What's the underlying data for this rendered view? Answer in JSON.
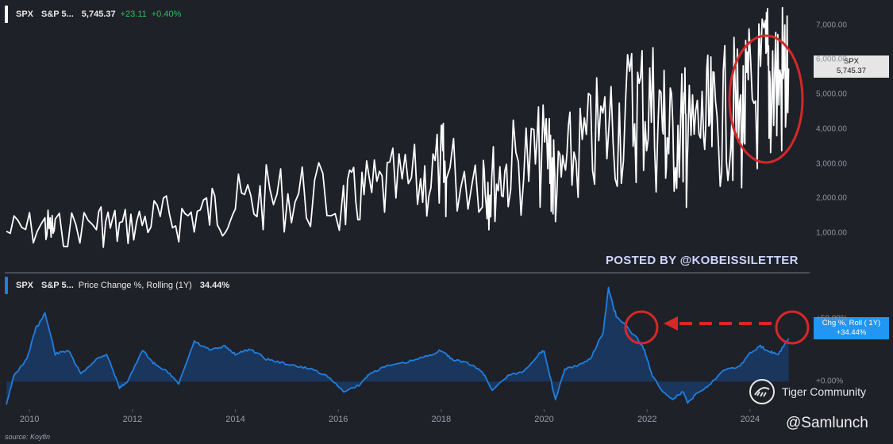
{
  "price_header": {
    "ticker": "SPX",
    "name": "S&P 5...",
    "last": "5,745.37",
    "change": "+23.11",
    "change_pct": "+0.40%"
  },
  "change_header": {
    "ticker": "SPX",
    "name": "S&P 5...",
    "metric": "Price Change %, Rolling (1Y)",
    "value": "34.44%"
  },
  "price_badge": {
    "line1": "SPX",
    "line2": "5,745.37"
  },
  "change_badge": {
    "line1": "Chg %, Roll ( 1Y)",
    "line2": "+34.44%"
  },
  "watermark": "POSTED BY @KOBEISSILETTER",
  "source": "source: Koyfin",
  "community": "Tiger Community",
  "handle": "@Samlunch",
  "colors": {
    "price_line": "#ffffff",
    "change_line": "#1f7fe0",
    "change_fill": "#1a3a66",
    "circle": "#d62828",
    "background": "#1f2129"
  },
  "chart_data": [
    {
      "type": "line",
      "series": [
        {
          "name": "SPX",
          "x": [
            2009.55,
            2010.3,
            2010.5,
            2011.3,
            2011.75,
            2012.3,
            2012.9,
            2013.5,
            2014.0,
            2014.6,
            2015.3,
            2016.1,
            2016.5,
            2017.0,
            2017.6,
            2018.0,
            2018.1,
            2018.8,
            2018.98,
            2019.3,
            2019.8,
            2020.1,
            2020.22,
            2020.5,
            2020.9,
            2021.3,
            2021.7,
            2021.99,
            2022.3,
            2022.45,
            2022.7,
            2022.79,
            2023.1,
            2023.3,
            2023.6,
            2023.82,
            2023.98,
            2024.3,
            2024.4,
            2024.6,
            2024.75
          ],
          "y": [
            1050,
            1180,
            1050,
            1340,
            1130,
            1400,
            1430,
            1650,
            1800,
            1970,
            2100,
            1860,
            2100,
            2270,
            2450,
            2870,
            2650,
            2900,
            2400,
            2900,
            3050,
            3380,
            2240,
            3100,
            3600,
            4100,
            4500,
            4790,
            4200,
            3650,
            4100,
            3580,
            4100,
            3970,
            4580,
            4140,
            4750,
            5250,
            5500,
            5300,
            5745.37
          ]
        }
      ],
      "ylim": [
        0,
        7400
      ],
      "yticks": [
        {
          "value": 1000,
          "label": "1,000.00"
        },
        {
          "value": 2000,
          "label": "2,000.00"
        },
        {
          "value": 3000,
          "label": "3,000.00"
        },
        {
          "value": 4000,
          "label": "4,000.00"
        },
        {
          "value": 5000,
          "label": "5,000.00"
        },
        {
          "value": 6000,
          "label": "6,000.00"
        },
        {
          "value": 7000,
          "label": "7,000.00"
        }
      ],
      "xlim": [
        2009.55,
        2024.85
      ],
      "xticks": [
        {
          "value": 2010,
          "label": "2010"
        },
        {
          "value": 2012,
          "label": "2012"
        },
        {
          "value": 2014,
          "label": "2014"
        },
        {
          "value": 2016,
          "label": "2016"
        },
        {
          "value": 2018,
          "label": "2018"
        },
        {
          "value": 2020,
          "label": "2020"
        },
        {
          "value": 2022,
          "label": "2022"
        },
        {
          "value": 2024,
          "label": "2024"
        }
      ],
      "annotations": [
        "red ellipse around 2023.6–2024.75 rally"
      ],
      "grid": false
    },
    {
      "type": "area",
      "series": [
        {
          "name": "Price Change %, Rolling (1Y)",
          "x": [
            2009.55,
            2009.7,
            2009.95,
            2010.12,
            2010.3,
            2010.5,
            2010.75,
            2011.0,
            2011.3,
            2011.5,
            2011.75,
            2011.9,
            2012.2,
            2012.4,
            2012.6,
            2012.75,
            2012.9,
            2013.2,
            2013.5,
            2013.8,
            2014.0,
            2014.3,
            2014.6,
            2014.9,
            2015.2,
            2015.5,
            2015.8,
            2016.1,
            2016.4,
            2016.6,
            2016.9,
            2017.3,
            2017.7,
            2018.0,
            2018.2,
            2018.5,
            2018.8,
            2018.99,
            2019.3,
            2019.6,
            2019.9,
            2020.0,
            2020.22,
            2020.4,
            2020.6,
            2020.9,
            2021.15,
            2021.25,
            2021.4,
            2021.8,
            2021.95,
            2022.1,
            2022.3,
            2022.5,
            2022.7,
            2022.79,
            2022.95,
            2023.2,
            2023.5,
            2023.8,
            2023.98,
            2024.2,
            2024.4,
            2024.55,
            2024.75
          ],
          "y": [
            -18,
            5,
            18,
            42,
            55,
            22,
            25,
            6,
            18,
            22,
            -5,
            0,
            25,
            15,
            10,
            5,
            -2,
            32,
            25,
            28,
            22,
            26,
            18,
            15,
            12,
            10,
            4,
            -8,
            -3,
            6,
            12,
            15,
            20,
            25,
            18,
            15,
            8,
            -7,
            5,
            8,
            22,
            25,
            -15,
            10,
            12,
            18,
            40,
            75,
            52,
            35,
            25,
            5,
            -8,
            -14,
            -8,
            -17,
            -10,
            -3,
            10,
            12,
            22,
            28,
            24,
            22,
            34.44
          ]
        }
      ],
      "ylim": [
        -22,
        80
      ],
      "yticks": [
        {
          "value": 0,
          "label": "+0.00%"
        },
        {
          "value": 50,
          "label": "+50.00%"
        }
      ],
      "xlim": [
        2009.55,
        2024.85
      ],
      "annotations": [
        "red circle near 2022 peak",
        "red dashed arrow from latest value back to 2022",
        "red circle around latest value"
      ],
      "grid": false
    }
  ]
}
